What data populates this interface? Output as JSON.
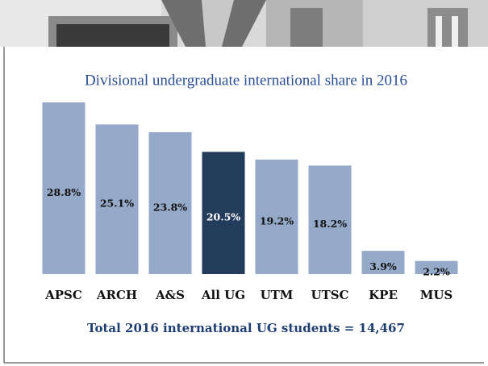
{
  "chart_data": {
    "type": "bar",
    "title": "Divisional undergraduate international share in 2016",
    "categories": [
      "APSC",
      "ARCH",
      "A&S",
      "All UG",
      "UTM",
      "UTSC",
      "KPE",
      "MUS"
    ],
    "values": [
      28.8,
      25.1,
      23.8,
      20.5,
      19.2,
      18.2,
      3.9,
      2.2
    ],
    "value_labels": [
      "28.8%",
      "25.1%",
      "23.8%",
      "20.5%",
      "19.2%",
      "18.2%",
      "3.9%",
      "2.2%"
    ],
    "colors": [
      "#95a9c8",
      "#95a9c8",
      "#95a9c8",
      "#243c5c",
      "#95a9c8",
      "#95a9c8",
      "#95a9c8",
      "#95a9c8"
    ],
    "footnote": "Total 2016 international UG students = 14,467"
  }
}
